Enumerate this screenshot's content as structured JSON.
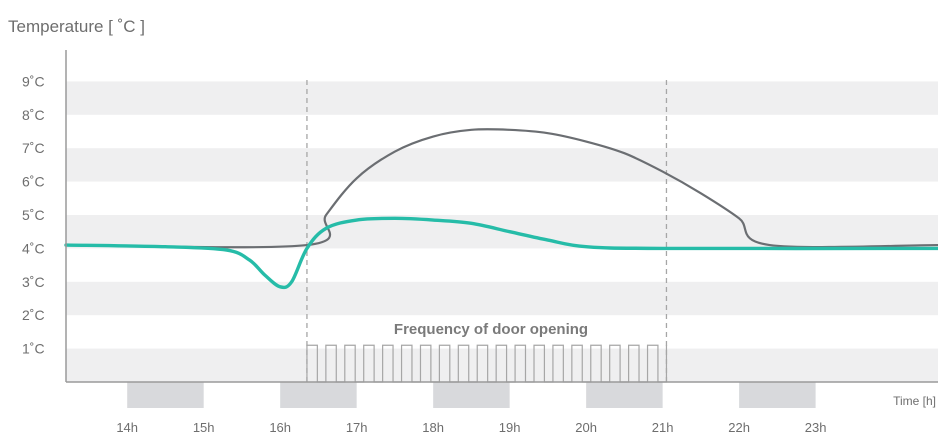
{
  "chart_data": {
    "type": "line",
    "ylabel": "Temperature [ ˚C ]",
    "xlabel": "Time [h]",
    "ylim": [
      0,
      10
    ],
    "xlim": [
      13.2,
      24.6
    ],
    "y_ticks": [
      {
        "value": 1,
        "label": "1˚C"
      },
      {
        "value": 2,
        "label": "2˚C"
      },
      {
        "value": 3,
        "label": "3˚C"
      },
      {
        "value": 4,
        "label": "4˚C"
      },
      {
        "value": 5,
        "label": "5˚C"
      },
      {
        "value": 6,
        "label": "6˚C"
      },
      {
        "value": 7,
        "label": "7˚C"
      },
      {
        "value": 8,
        "label": "8˚C"
      },
      {
        "value": 9,
        "label": "9˚C"
      }
    ],
    "x_ticks": [
      {
        "value": 14,
        "label": "14h"
      },
      {
        "value": 15,
        "label": "15h"
      },
      {
        "value": 16,
        "label": "16h"
      },
      {
        "value": 17,
        "label": "17h"
      },
      {
        "value": 18,
        "label": "18h"
      },
      {
        "value": 19,
        "label": "19h"
      },
      {
        "value": 20,
        "label": "20h"
      },
      {
        "value": 21,
        "label": "21h"
      },
      {
        "value": 22,
        "label": "22h"
      },
      {
        "value": 23,
        "label": "23h"
      }
    ],
    "hour_blocks": [
      [
        14,
        15
      ],
      [
        16,
        17
      ],
      [
        18,
        19
      ],
      [
        20,
        21
      ],
      [
        22,
        23
      ]
    ],
    "door_window": {
      "start": 16.35,
      "end": 21.05,
      "pulses": 19,
      "label": "Frequency of door opening"
    },
    "series": [
      {
        "color": "#6b6e72",
        "points": [
          [
            13.2,
            4.1
          ],
          [
            16.35,
            4.1
          ],
          [
            16.6,
            5.0
          ],
          [
            17.0,
            6.1
          ],
          [
            17.5,
            6.9
          ],
          [
            18.0,
            7.35
          ],
          [
            18.5,
            7.55
          ],
          [
            19.0,
            7.55
          ],
          [
            19.5,
            7.45
          ],
          [
            20.0,
            7.2
          ],
          [
            20.5,
            6.85
          ],
          [
            21.0,
            6.3
          ],
          [
            21.5,
            5.65
          ],
          [
            22.0,
            4.9
          ],
          [
            22.4,
            4.1
          ],
          [
            24.6,
            4.1
          ]
        ]
      },
      {
        "color": "#26bca8",
        "points": [
          [
            13.2,
            4.1
          ],
          [
            14.5,
            4.05
          ],
          [
            15.3,
            3.95
          ],
          [
            15.6,
            3.65
          ],
          [
            15.8,
            3.2
          ],
          [
            16.0,
            2.85
          ],
          [
            16.15,
            3.0
          ],
          [
            16.35,
            4.0
          ],
          [
            16.6,
            4.6
          ],
          [
            17.0,
            4.85
          ],
          [
            17.5,
            4.9
          ],
          [
            18.0,
            4.85
          ],
          [
            18.5,
            4.75
          ],
          [
            19.0,
            4.5
          ],
          [
            19.5,
            4.25
          ],
          [
            20.0,
            4.05
          ],
          [
            21.0,
            4.0
          ],
          [
            24.6,
            4.0
          ]
        ]
      }
    ]
  }
}
